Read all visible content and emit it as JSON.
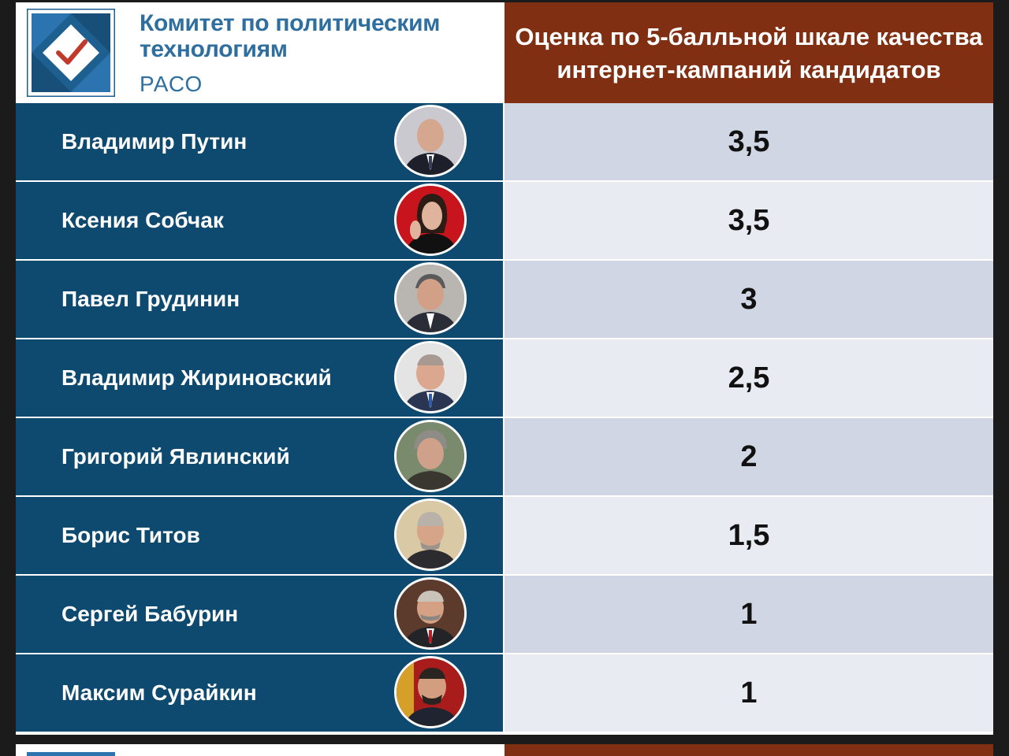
{
  "header": {
    "org_name": "Комитет по политическим технологиям",
    "org_sub": "РАСО",
    "title": "Оценка по 5-балльной шкале качества интернет-кампаний кандидатов"
  },
  "colors": {
    "name_column": "#0e4a70",
    "header_brown": "#812f12",
    "score_row_dark": "#d0d6e3",
    "score_row_light": "#e8ebf2",
    "logo_blue": "#2f6fa0"
  },
  "candidates": [
    {
      "name": "Владимир Путин",
      "score": "3,5"
    },
    {
      "name": "Ксения Собчак",
      "score": "3,5"
    },
    {
      "name": "Павел Грудинин",
      "score": "3"
    },
    {
      "name": "Владимир Жириновский",
      "score": "2,5"
    },
    {
      "name": "Григорий Явлинский",
      "score": "2"
    },
    {
      "name": "Борис Титов",
      "score": "1,5"
    },
    {
      "name": "Сергей Бабурин",
      "score": "1"
    },
    {
      "name": "Максим Сурайкин",
      "score": "1"
    }
  ]
}
